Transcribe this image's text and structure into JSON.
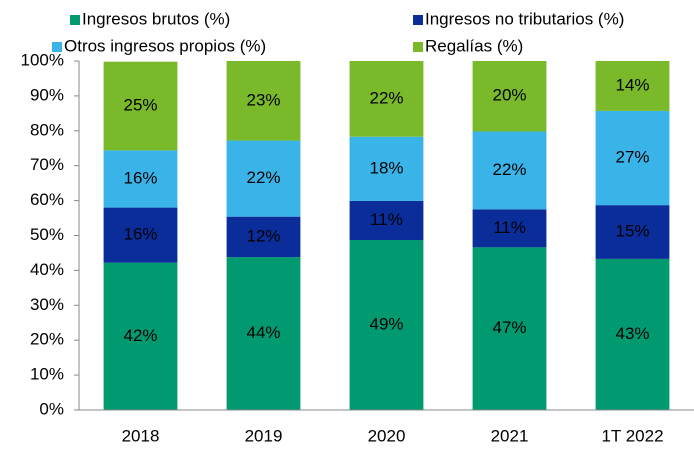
{
  "chart_data": {
    "type": "stacked_bar",
    "categories": [
      "2018",
      "2019",
      "2020",
      "2021",
      "1T 2022"
    ],
    "series": [
      {
        "name": "Ingresos brutos (%)",
        "color": "#009970",
        "values": [
          42.2,
          43.8,
          48.7,
          46.6,
          43.3
        ],
        "value_labels": [
          "42%",
          "44%",
          "49%",
          "47%",
          "43%"
        ]
      },
      {
        "name": "Ingresos no tributarios (%)",
        "color": "#0a2d9a",
        "values": [
          15.8,
          11.6,
          11.2,
          10.9,
          15.4
        ],
        "value_labels": [
          "16%",
          "12%",
          "11%",
          "11%",
          "15%"
        ]
      },
      {
        "name": "Otros ingresos propios (%)",
        "color": "#3ab4e8",
        "values": [
          16.4,
          21.8,
          18.4,
          22.3,
          27
        ],
        "value_labels": [
          "16%",
          "22%",
          "18%",
          "22%",
          "27%"
        ]
      },
      {
        "name": "Regalías (%)",
        "color": "#7ab929",
        "values": [
          25.4,
          22.8,
          21.7,
          20.2,
          14.3
        ],
        "value_labels": [
          "25%",
          "23%",
          "22%",
          "20%",
          "14%"
        ]
      }
    ],
    "ylim": [
      0,
      100
    ],
    "yticks": [
      {
        "value": 0,
        "label": "0%"
      },
      {
        "value": 10,
        "label": "10%"
      },
      {
        "value": 20,
        "label": "20%"
      },
      {
        "value": 30,
        "label": "30%"
      },
      {
        "value": 40,
        "label": "40%"
      },
      {
        "value": 50,
        "label": "50%"
      },
      {
        "value": 60,
        "label": "60%"
      },
      {
        "value": 70,
        "label": "70%"
      },
      {
        "value": 80,
        "label": "80%"
      },
      {
        "value": 90,
        "label": "90%"
      },
      {
        "value": 100,
        "label": "100%"
      }
    ],
    "legend": "top"
  }
}
